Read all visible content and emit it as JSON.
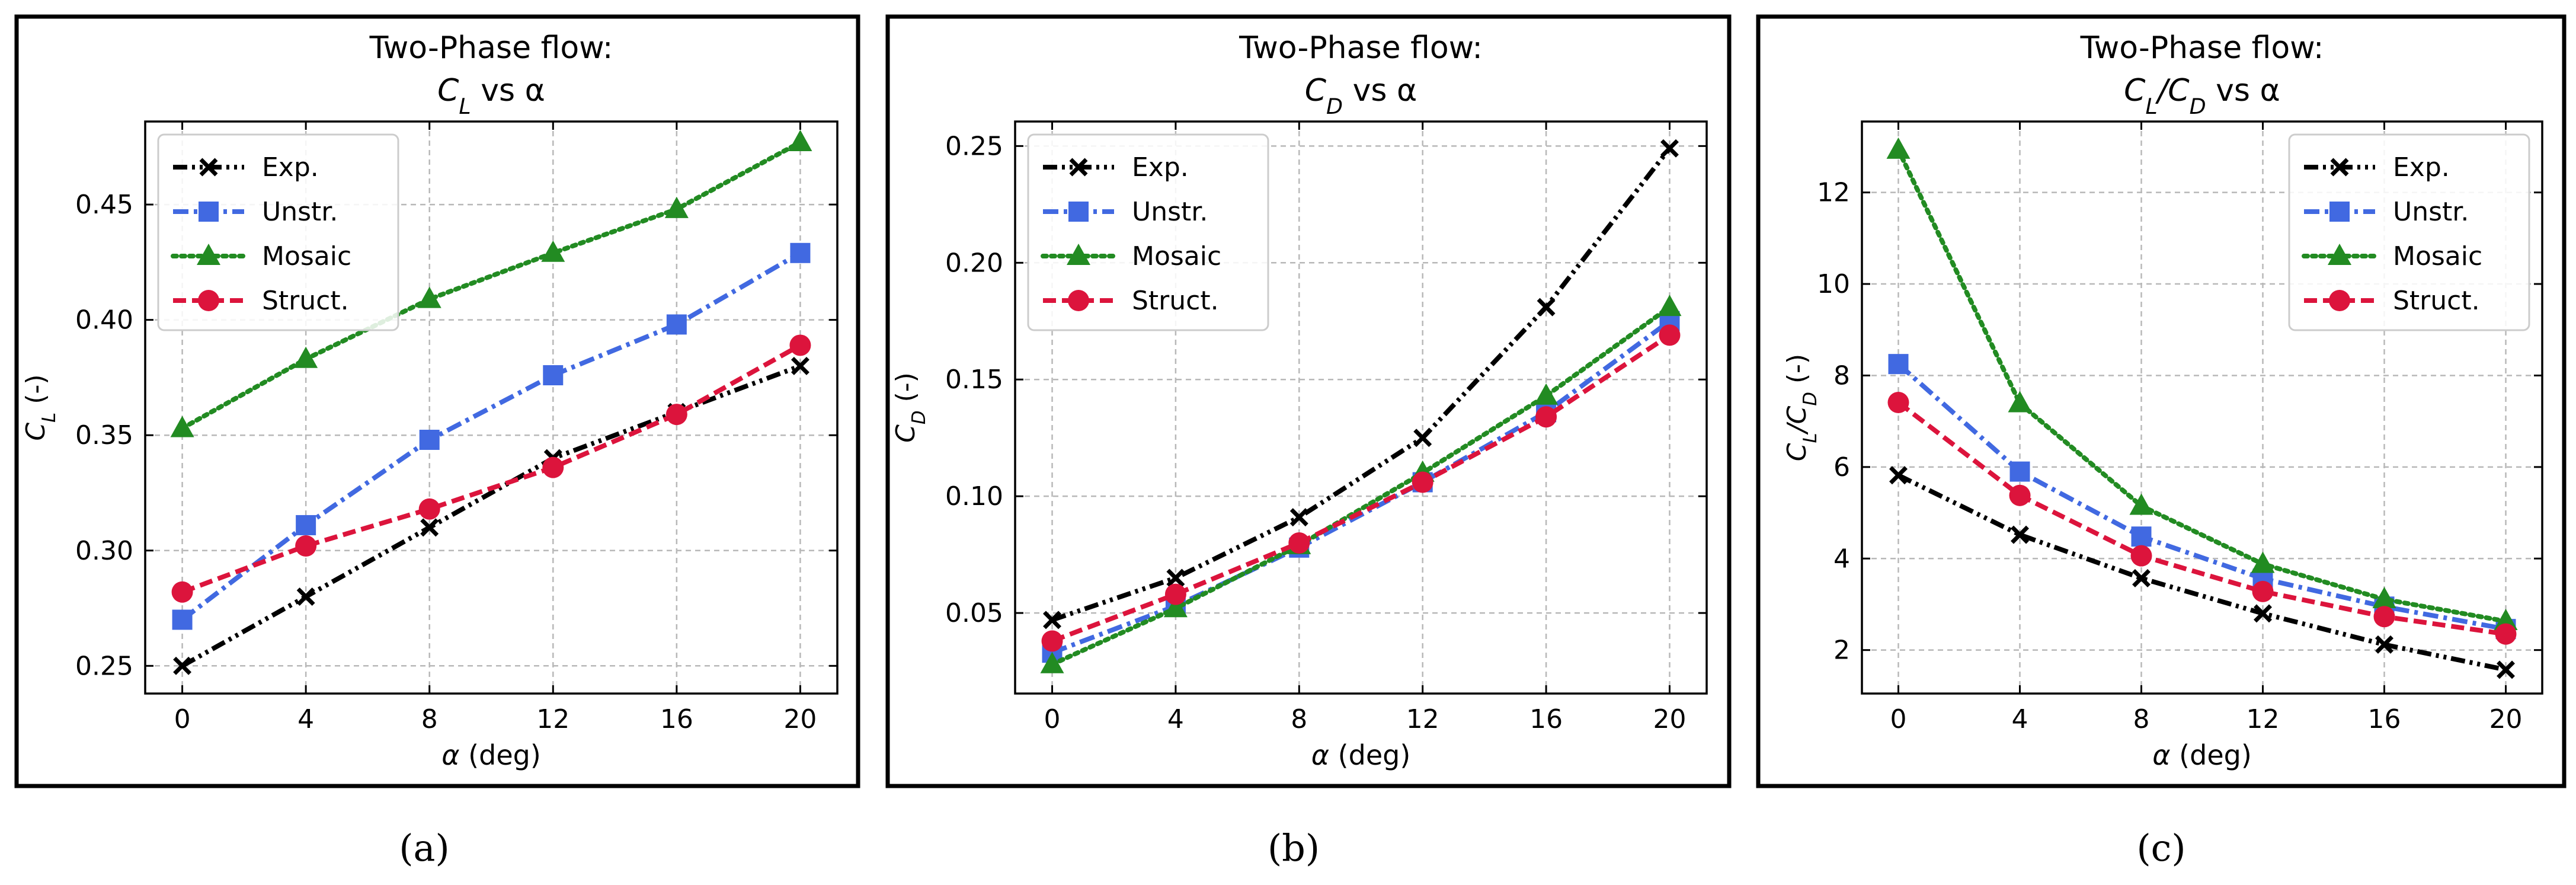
{
  "chart_data": [
    {
      "type": "line",
      "caption": "(a)",
      "title_line1": "Two-Phase flow:",
      "title_line2": {
        "main": "C",
        "sub": "L",
        "rest": " vs α"
      },
      "xlabel": "α (deg)",
      "ylabel": {
        "main": "C",
        "sub": "L",
        "rest": " (-)"
      },
      "x": [
        0,
        4,
        8,
        12,
        16,
        20
      ],
      "xlim": [
        -1.2,
        21.2
      ],
      "ylim": [
        0.238,
        0.486
      ],
      "yticks": [
        0.25,
        0.3,
        0.35,
        0.4,
        0.45
      ],
      "ytick_labels": [
        "0.25",
        "0.30",
        "0.35",
        "0.40",
        "0.45"
      ],
      "legend_position": "upper-left",
      "series": [
        {
          "name": "Exp.",
          "values": [
            0.25,
            0.28,
            0.31,
            0.34,
            0.36,
            0.38
          ]
        },
        {
          "name": "Unstr.",
          "values": [
            0.27,
            0.311,
            0.348,
            0.376,
            0.398,
            0.429
          ]
        },
        {
          "name": "Mosaic",
          "values": [
            0.353,
            0.383,
            0.409,
            0.429,
            0.448,
            0.477
          ]
        },
        {
          "name": "Struct.",
          "values": [
            0.282,
            0.302,
            0.318,
            0.336,
            0.359,
            0.389
          ]
        }
      ]
    },
    {
      "type": "line",
      "caption": "(b)",
      "title_line1": "Two-Phase flow:",
      "title_line2": {
        "main": "C",
        "sub": "D",
        "rest": " vs α"
      },
      "xlabel": "α (deg)",
      "ylabel": {
        "main": "C",
        "sub": "D",
        "rest": " (-)"
      },
      "x": [
        0,
        4,
        8,
        12,
        16,
        20
      ],
      "xlim": [
        -1.2,
        21.2
      ],
      "ylim": [
        0.0155,
        0.2605
      ],
      "yticks": [
        0.05,
        0.1,
        0.15,
        0.2,
        0.25
      ],
      "ytick_labels": [
        "0.05",
        "0.10",
        "0.15",
        "0.20",
        "0.25"
      ],
      "legend_position": "upper-left",
      "series": [
        {
          "name": "Exp.",
          "values": [
            0.047,
            0.065,
            0.091,
            0.125,
            0.181,
            0.249
          ]
        },
        {
          "name": "Unstr.",
          "values": [
            0.033,
            0.053,
            0.078,
            0.106,
            0.136,
            0.175
          ]
        },
        {
          "name": "Mosaic",
          "values": [
            0.028,
            0.052,
            0.079,
            0.11,
            0.143,
            0.181
          ]
        },
        {
          "name": "Struct.",
          "values": [
            0.038,
            0.058,
            0.08,
            0.106,
            0.134,
            0.169
          ]
        }
      ]
    },
    {
      "type": "line",
      "caption": "(c)",
      "title_line1": "Two-Phase flow:",
      "title_line2": {
        "main": "C",
        "sub": "L",
        "rest2main": "/C",
        "sub2": "D",
        "rest": " vs α"
      },
      "xlabel": "α (deg)",
      "ylabel": {
        "main": "C",
        "sub": "L",
        "rest2main": "/C",
        "sub2": "D",
        "rest": " (-)"
      },
      "x": [
        0,
        4,
        8,
        12,
        16,
        20
      ],
      "xlim": [
        -1.2,
        21.2
      ],
      "ylim": [
        1.05,
        13.55
      ],
      "yticks": [
        2,
        4,
        6,
        8,
        10,
        12
      ],
      "ytick_labels": [
        "2",
        "4",
        "6",
        "8",
        "10",
        "12"
      ],
      "legend_position": "upper-right",
      "series": [
        {
          "name": "Exp.",
          "values": [
            5.82,
            4.52,
            3.57,
            2.8,
            2.12,
            1.57
          ]
        },
        {
          "name": "Unstr.",
          "values": [
            8.25,
            5.9,
            4.48,
            3.56,
            2.95,
            2.46
          ]
        },
        {
          "name": "Mosaic",
          "values": [
            12.93,
            7.39,
            5.15,
            3.88,
            3.11,
            2.63
          ]
        },
        {
          "name": "Struct.",
          "values": [
            7.41,
            5.38,
            4.06,
            3.28,
            2.73,
            2.35
          ]
        }
      ]
    }
  ],
  "series_styles": {
    "Exp.": {
      "color": "#000000",
      "marker": "x",
      "dash": "dashdotdot"
    },
    "Unstr.": {
      "color": "#4169e1",
      "marker": "square",
      "dash": "dashdot"
    },
    "Mosaic": {
      "color": "#228b22",
      "marker": "triangle",
      "dash": "dotted"
    },
    "Struct.": {
      "color": "#dc143c",
      "marker": "circle",
      "dash": "dashed"
    }
  },
  "grid": true
}
